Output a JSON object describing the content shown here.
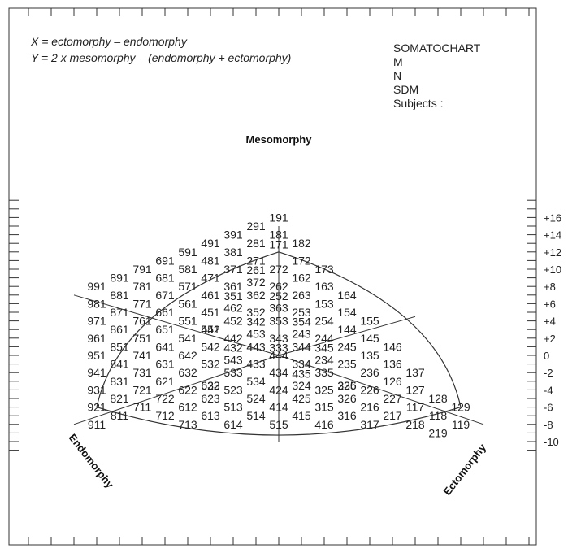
{
  "chart_data": {
    "type": "scatter",
    "title": "SOMATOCHART",
    "x_formula": "X = ectomorphy – endomorphy",
    "y_formula": "Y = 2 x mesomorphy – (endomorphy + ectomorphy)",
    "x_range": [
      -8,
      8
    ],
    "y_range": [
      -10,
      16
    ],
    "y_ticks": [
      "+16",
      "+14",
      "+12",
      "+10",
      "+8",
      "+6",
      "+4",
      "+2",
      "0",
      "-2",
      "-4",
      "-6",
      "-8",
      "-10"
    ],
    "y_tick_values": [
      16,
      14,
      12,
      10,
      8,
      6,
      4,
      2,
      0,
      -2,
      -4,
      -6,
      -8,
      -10
    ],
    "legend_lines": [
      "M",
      "N",
      "SDM",
      "Subjects :"
    ],
    "region_labels": {
      "mesomorphy": "Mesomorphy",
      "endomorphy": "Endomorphy",
      "ectomorphy": "Ectomorphy"
    },
    "somatotype_codes": [
      "191",
      "291",
      "181",
      "391",
      "281",
      "182",
      "491",
      "381",
      "171",
      "591",
      "481",
      "271",
      "172",
      "691",
      "581",
      "371",
      "272",
      "173",
      "791",
      "681",
      "471",
      "372",
      "261",
      "262",
      "162",
      "891",
      "781",
      "571",
      "361",
      "163",
      "991",
      "881",
      "671",
      "461",
      "362",
      "263",
      "164",
      "981",
      "771",
      "561",
      "462",
      "351",
      "363",
      "252",
      "153",
      "871",
      "661",
      "451",
      "352",
      "253",
      "154",
      "971",
      "761",
      "551",
      "452",
      "353",
      "254",
      "155",
      "861",
      "651",
      "552",
      "441",
      "453",
      "342",
      "243",
      "354",
      "144",
      "961",
      "751",
      "541",
      "442",
      "343",
      "244",
      "145",
      "851",
      "641",
      "542",
      "443",
      "344",
      "245",
      "146",
      "951",
      "741",
      "642",
      "543",
      "432",
      "444",
      "333",
      "234",
      "345",
      "135",
      "841",
      "631",
      "532",
      "433",
      "334",
      "235",
      "136",
      "941",
      "731",
      "632",
      "533",
      "434",
      "335",
      "236",
      "137",
      "831",
      "621",
      "522",
      "633",
      "534",
      "324",
      "435",
      "225",
      "336",
      "126",
      "931",
      "721",
      "622",
      "523",
      "424",
      "325",
      "226",
      "127",
      "821",
      "722",
      "623",
      "524",
      "425",
      "326",
      "227",
      "128",
      "921",
      "711",
      "612",
      "513",
      "414",
      "315",
      "216",
      "117",
      "129",
      "811",
      "712",
      "613",
      "514",
      "415",
      "316",
      "217",
      "118",
      "911",
      "713",
      "614",
      "515",
      "416",
      "317",
      "218",
      "119",
      "219"
    ]
  }
}
